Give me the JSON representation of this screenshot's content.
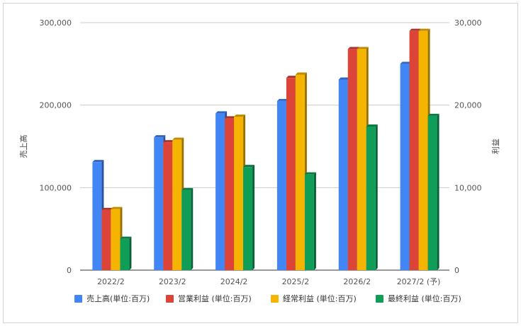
{
  "chart_data": {
    "type": "bar",
    "categories": [
      "2022/2",
      "2023/2",
      "2024/2",
      "2025/2",
      "2026/2",
      "2027/2 (予)"
    ],
    "y_left": {
      "label": "売上高",
      "range": [
        0,
        300000
      ],
      "ticks": [
        0,
        100000,
        200000,
        300000
      ],
      "tick_labels": [
        "0",
        "100,000",
        "200,000",
        "300,000"
      ]
    },
    "y_right": {
      "label": "利益",
      "range": [
        0,
        30000
      ],
      "ticks": [
        0,
        10000,
        20000,
        30000
      ],
      "tick_labels": [
        "0",
        "10,000",
        "20,000",
        "30,000"
      ]
    },
    "grid": true,
    "legend_position": "bottom",
    "series": [
      {
        "name": "売上高(単位:百万)",
        "axis": "left",
        "color": "#4285f4",
        "values": [
          131000,
          161000,
          190000,
          205000,
          231000,
          250000
        ]
      },
      {
        "name": "営業利益 (単位:百万)",
        "axis": "right",
        "color": "#db4437",
        "values": [
          7300,
          15500,
          18400,
          23300,
          26800,
          29000
        ]
      },
      {
        "name": "経常利益 (単位:百万)",
        "axis": "right",
        "color": "#f4b400",
        "values": [
          7400,
          15800,
          18600,
          23700,
          26800,
          29000
        ]
      },
      {
        "name": "最終利益 (単位:百万)",
        "axis": "right",
        "color": "#0f9d58",
        "values": [
          3800,
          9700,
          12500,
          11600,
          17400,
          18700
        ]
      }
    ]
  }
}
